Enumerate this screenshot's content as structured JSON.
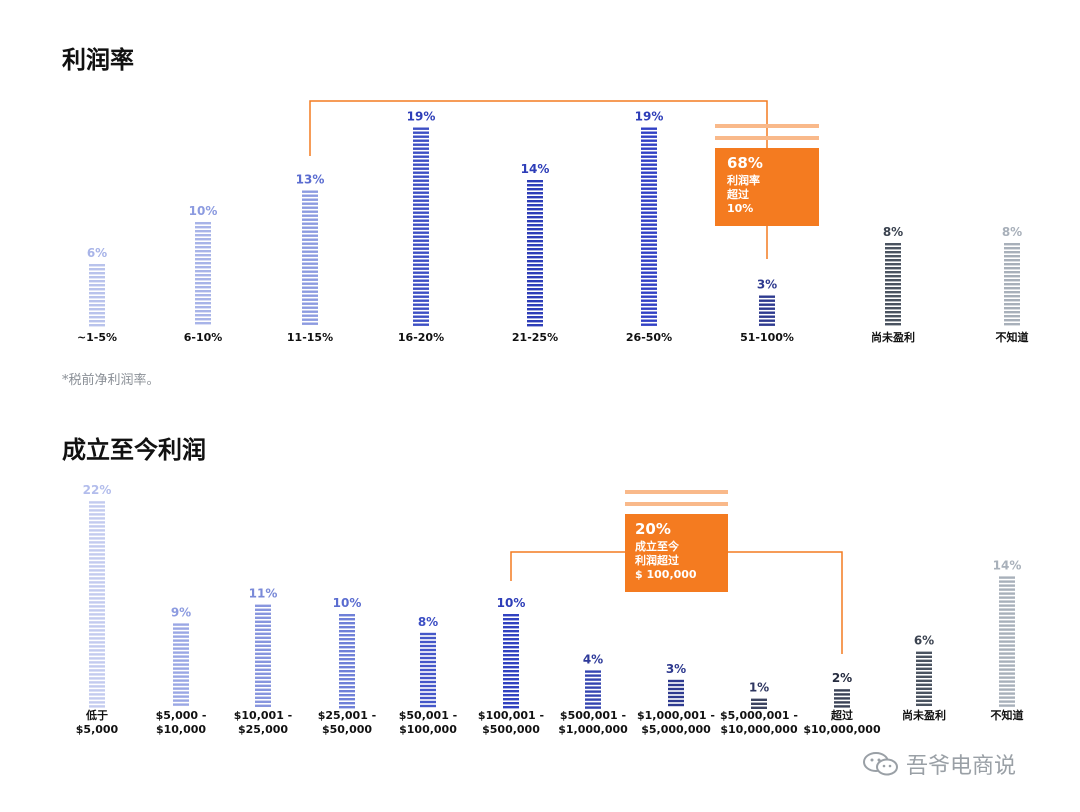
{
  "charts": {
    "profit_margin": {
      "title": "利润率",
      "footnote": "*税前净利润率。"
    },
    "lifetime_profit": {
      "title": "成立至今利润"
    }
  },
  "watermark": {
    "text": "吾爷电商说",
    "icon": "wechat-chat-bubbles-icon"
  },
  "colors": {
    "accent": "#f47b20",
    "accent_light": "#f9b98a",
    "bar_scale": [
      "#b9c3ec",
      "#a8b4e8",
      "#8c9be0",
      "#3d4fc4",
      "#2d3db8",
      "#3140c4",
      "#2e3a8f",
      "#4a5360",
      "#a8b0ba"
    ]
  },
  "chart_data": [
    {
      "type": "bar",
      "title": "利润率",
      "categories": [
        "~1-5%",
        "6-10%",
        "11-15%",
        "16-20%",
        "21-25%",
        "26-50%",
        "51-100%",
        "尚未盈利",
        "不知道"
      ],
      "values": [
        6,
        10,
        13,
        19,
        14,
        19,
        3,
        8,
        8
      ],
      "value_labels": [
        "6%",
        "10%",
        "13%",
        "19%",
        "14%",
        "19%",
        "3%",
        "8%",
        "8%"
      ],
      "unit": "%",
      "annotation": {
        "value": "68%",
        "lines": [
          "利润率",
          "超过",
          "10%"
        ],
        "bracket_categories": [
          "11-15%",
          "51-100%"
        ]
      },
      "footnote": "*税前净利润率。"
    },
    {
      "type": "bar",
      "title": "成立至今利润",
      "categories": [
        [
          "低于",
          "$5,000"
        ],
        [
          "$5,000 -",
          "$10,000"
        ],
        [
          "$10,001 -",
          "$25,000"
        ],
        [
          "$25,001 -",
          "$50,000"
        ],
        [
          "$50,001 -",
          "$100,000"
        ],
        [
          "$100,001 -",
          "$500,000"
        ],
        [
          "$500,001 -",
          "$1,000,000"
        ],
        [
          "$1,000,001 -",
          "$5,000,000"
        ],
        [
          "$5,000,001 -",
          "$10,000,000"
        ],
        [
          "超过",
          "$10,000,000"
        ],
        [
          "尚未盈利",
          ""
        ],
        [
          "不知道",
          ""
        ]
      ],
      "values": [
        22,
        9,
        11,
        10,
        8,
        10,
        4,
        3,
        1,
        2,
        6,
        14
      ],
      "value_labels": [
        "22%",
        "9%",
        "11%",
        "10%",
        "8%",
        "10%",
        "4%",
        "3%",
        "1%",
        "2%",
        "6%",
        "14%"
      ],
      "unit": "%",
      "annotation": {
        "value": "20%",
        "lines": [
          "成立至今",
          "利润超过",
          "$ 100,000"
        ],
        "bracket_categories": [
          "$100,001 -",
          "超过"
        ]
      }
    }
  ]
}
